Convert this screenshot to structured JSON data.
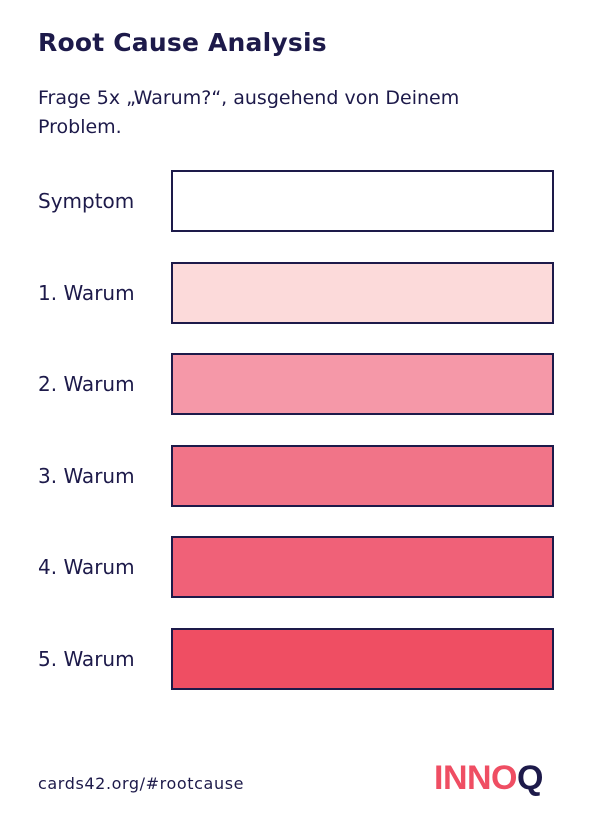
{
  "card": {
    "title": "Root Cause Analysis",
    "subtitle": "Frage 5x „Warum?“, ausgehend von Deinem Problem.",
    "footer_link": "cards42.org/#rootcause",
    "logo": {
      "part1": "INNO",
      "part2": "Q"
    }
  },
  "rows": [
    {
      "label": "Symptom",
      "fill": "#ffffff"
    },
    {
      "label": "1. Warum",
      "fill": "#fcdada"
    },
    {
      "label": "2. Warum",
      "fill": "#f598a8"
    },
    {
      "label": "3. Warum",
      "fill": "#f17488"
    },
    {
      "label": "4. Warum",
      "fill": "#f06178"
    },
    {
      "label": "5. Warum",
      "fill": "#ef4e63"
    }
  ]
}
